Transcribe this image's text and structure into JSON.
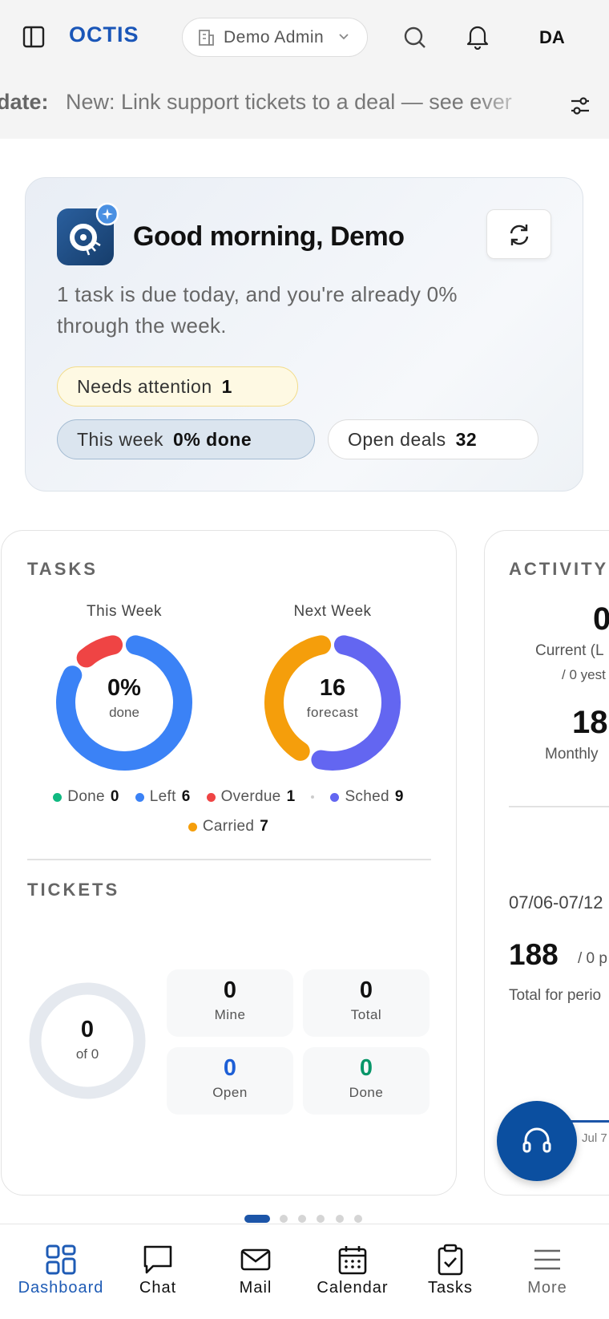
{
  "header": {
    "logo": "OCTIS",
    "workspace": "Demo Admin",
    "avatar": "DA"
  },
  "ticker": {
    "label": "date:",
    "text": "New: Link support tickets to a deal — see ever"
  },
  "greeting": {
    "title": "Good morning, Demo",
    "subtitle": "1 task is due today, and you're already 0% through the week.",
    "pills": [
      {
        "label": "Needs attention",
        "value": "1"
      },
      {
        "label": "This week",
        "value": "0% done"
      },
      {
        "label": "Open deals",
        "value": "32"
      }
    ]
  },
  "tasks": {
    "title": "TASKS",
    "this_week": {
      "label": "This Week",
      "center": "0%",
      "center_sub": "done",
      "legend": [
        {
          "name": "Done",
          "color": "#10b981",
          "value": 0
        },
        {
          "name": "Left",
          "color": "#3b82f6",
          "value": 6
        },
        {
          "name": "Overdue",
          "color": "#ef4444",
          "value": 1
        }
      ]
    },
    "next_week": {
      "label": "Next Week",
      "center": 16,
      "center_sub": "forecast",
      "legend": [
        {
          "name": "Sched",
          "color": "#6366f1",
          "value": 9
        },
        {
          "name": "Carried",
          "color": "#f59e0b",
          "value": 7
        }
      ]
    }
  },
  "tickets": {
    "title": "TICKETS",
    "center": 0,
    "center_sub": "of 0",
    "stats": [
      {
        "label": "Mine",
        "value": 0
      },
      {
        "label": "Total",
        "value": 0
      },
      {
        "label": "Open",
        "value": 0
      },
      {
        "label": "Done",
        "value": 0
      }
    ]
  },
  "activity": {
    "title": "ACTIVITY",
    "current": 0,
    "current_label": "Current (L",
    "current_sub": "/ 0 yest",
    "monthly": 18,
    "monthly_label": "Monthly",
    "period": "07/06-07/12",
    "period_total": 188,
    "period_sub": "/ 0 p",
    "period_label": "Total for perio",
    "axis_label": "Jul 7"
  },
  "nav": [
    "Dashboard",
    "Chat",
    "Mail",
    "Calendar",
    "Tasks",
    "More"
  ]
}
